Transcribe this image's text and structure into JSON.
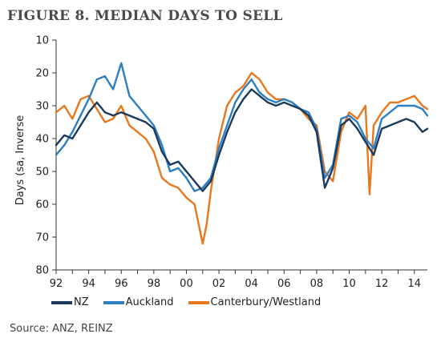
{
  "header": {
    "title": "FIGURE 8. MEDIAN DAYS TO SELL"
  },
  "footer": {
    "source": "Source: ANZ, REINZ"
  },
  "chart_data": {
    "type": "line",
    "ylabel": "Days (sa, Inverse",
    "xlabel": "",
    "y_inverted": true,
    "ylim": [
      10,
      80
    ],
    "yticks": [
      10,
      20,
      30,
      40,
      50,
      60,
      70,
      80
    ],
    "xlim": [
      1992,
      2014.8
    ],
    "xticks": [
      1992,
      1994,
      1996,
      1998,
      2000,
      2002,
      2004,
      2006,
      2008,
      2010,
      2012,
      2014
    ],
    "xtick_labels": [
      "92",
      "94",
      "96",
      "98",
      "00",
      "02",
      "04",
      "06",
      "08",
      "10",
      "12",
      "14"
    ],
    "grid": false,
    "legend_position": "bottom",
    "series": [
      {
        "name": "NZ",
        "color": "#1b3a5c",
        "x": [
          1992.0,
          1992.5,
          1993.0,
          1993.5,
          1994.0,
          1994.5,
          1995.0,
          1995.5,
          1996.0,
          1996.5,
          1997.0,
          1997.5,
          1998.0,
          1998.5,
          1999.0,
          1999.5,
          2000.0,
          2000.5,
          2001.0,
          2001.5,
          2002.0,
          2002.5,
          2003.0,
          2003.5,
          2004.0,
          2004.5,
          2005.0,
          2005.5,
          2006.0,
          2006.5,
          2007.0,
          2007.5,
          2008.0,
          2008.5,
          2009.0,
          2009.5,
          2010.0,
          2010.5,
          2011.0,
          2011.5,
          2012.0,
          2012.5,
          2013.0,
          2013.5,
          2014.0,
          2014.5,
          2014.8
        ],
        "values": [
          42,
          39,
          40,
          36,
          32,
          29,
          32,
          33,
          32,
          33,
          34,
          35,
          37,
          44,
          48,
          47,
          50,
          53,
          56,
          53,
          45,
          38,
          32,
          28,
          25,
          27,
          29,
          30,
          29,
          30,
          31,
          33,
          38,
          55,
          49,
          36,
          34,
          37,
          41,
          45,
          37,
          36,
          35,
          34,
          35,
          38,
          37
        ]
      },
      {
        "name": "Auckland",
        "color": "#2e7fc1",
        "x": [
          1992.0,
          1992.5,
          1993.0,
          1993.5,
          1994.0,
          1994.5,
          1995.0,
          1995.5,
          1996.0,
          1996.5,
          1997.0,
          1997.5,
          1998.0,
          1998.5,
          1999.0,
          1999.5,
          2000.0,
          2000.5,
          2001.0,
          2001.5,
          2002.0,
          2002.5,
          2003.0,
          2003.5,
          2004.0,
          2004.5,
          2005.0,
          2005.5,
          2006.0,
          2006.5,
          2007.0,
          2007.5,
          2008.0,
          2008.5,
          2009.0,
          2009.5,
          2010.0,
          2010.5,
          2011.0,
          2011.5,
          2012.0,
          2012.5,
          2013.0,
          2013.5,
          2014.0,
          2014.5,
          2014.8
        ],
        "values": [
          45,
          42,
          38,
          33,
          28,
          22,
          21,
          25,
          17,
          27,
          30,
          33,
          36,
          42,
          50,
          49,
          52,
          56,
          55,
          52,
          43,
          36,
          29,
          25,
          22,
          26,
          28,
          29,
          28,
          29,
          31,
          32,
          37,
          52,
          48,
          34,
          33,
          35,
          40,
          43,
          34,
          32,
          30,
          30,
          30,
          31,
          33
        ]
      },
      {
        "name": "Canterbury/Westland",
        "color": "#e8781e",
        "x": [
          1992.0,
          1992.5,
          1993.0,
          1993.5,
          1994.0,
          1994.5,
          1995.0,
          1995.5,
          1996.0,
          1996.5,
          1997.0,
          1997.5,
          1998.0,
          1998.5,
          1999.0,
          1999.5,
          2000.0,
          2000.5,
          2001.0,
          2001.25,
          2001.5,
          2002.0,
          2002.5,
          2003.0,
          2003.5,
          2004.0,
          2004.5,
          2005.0,
          2005.5,
          2006.0,
          2006.5,
          2007.0,
          2007.5,
          2008.0,
          2008.5,
          2009.0,
          2009.5,
          2010.0,
          2010.5,
          2011.0,
          2011.25,
          2011.5,
          2012.0,
          2012.5,
          2013.0,
          2013.5,
          2014.0,
          2014.5,
          2014.8
        ],
        "values": [
          32,
          30,
          34,
          28,
          27,
          31,
          35,
          34,
          30,
          36,
          38,
          40,
          44,
          52,
          54,
          55,
          58,
          60,
          72,
          66,
          56,
          40,
          30,
          26,
          24,
          20,
          22,
          26,
          28,
          28,
          29,
          31,
          34,
          36,
          50,
          53,
          38,
          32,
          34,
          30,
          57,
          36,
          32,
          29,
          29,
          28,
          27,
          30,
          31
        ]
      }
    ]
  }
}
